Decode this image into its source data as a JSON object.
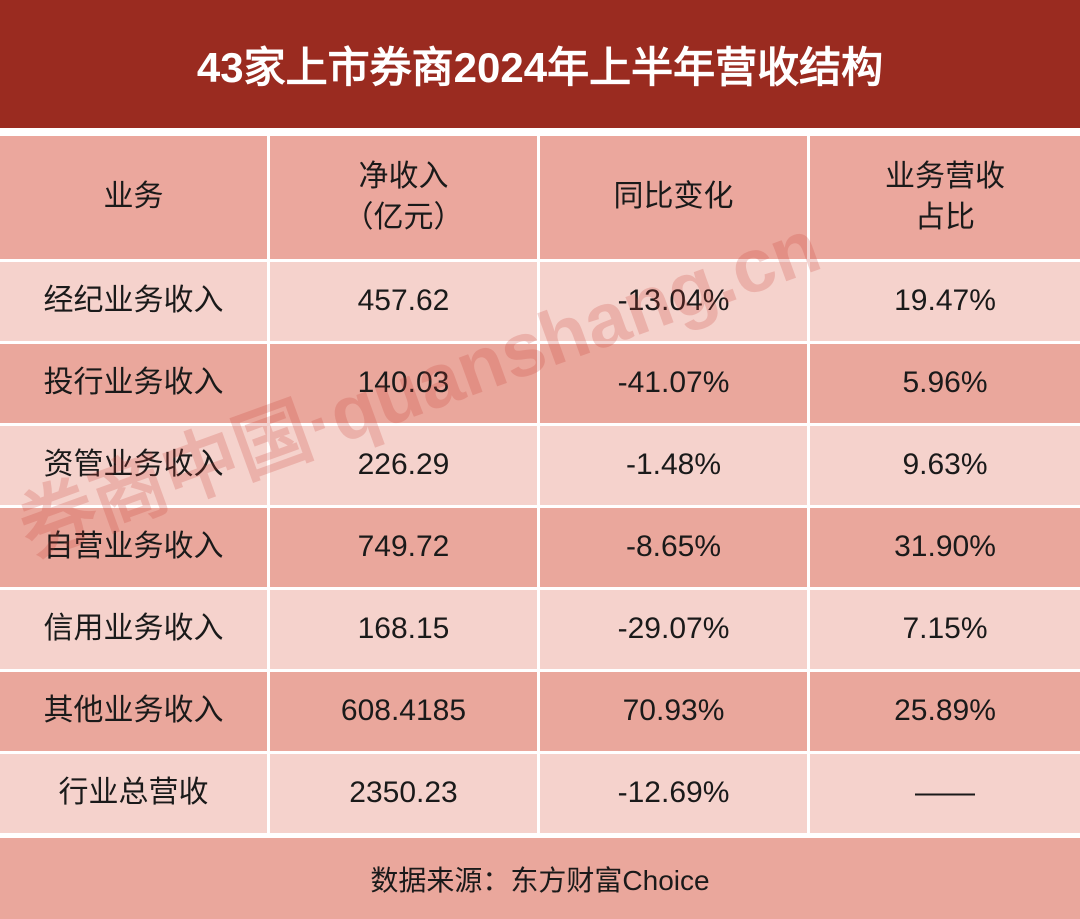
{
  "header": {
    "title": "43家上市券商2024年上半年营收结构"
  },
  "table": {
    "columns": [
      [
        "业务"
      ],
      [
        "净收入",
        "（亿元）"
      ],
      [
        "同比变化"
      ],
      [
        "业务营收",
        "占比"
      ]
    ],
    "rows": [
      [
        "经纪业务收入",
        "457.62",
        "-13.04%",
        "19.47%"
      ],
      [
        "投行业务收入",
        "140.03",
        "-41.07%",
        "5.96%"
      ],
      [
        "资管业务收入",
        "226.29",
        "-1.48%",
        "9.63%"
      ],
      [
        "自营业务收入",
        "749.72",
        "-8.65%",
        "31.90%"
      ],
      [
        "信用业务收入",
        "168.15",
        "-29.07%",
        "7.15%"
      ],
      [
        "其他业务收入",
        "608.4185",
        "70.93%",
        "25.89%"
      ],
      [
        "行业总营收",
        "2350.23",
        "-12.69%",
        "——"
      ]
    ]
  },
  "footer": {
    "source": "数据来源：东方财富Choice"
  },
  "watermark": "券商中国·quanshang.cn"
}
